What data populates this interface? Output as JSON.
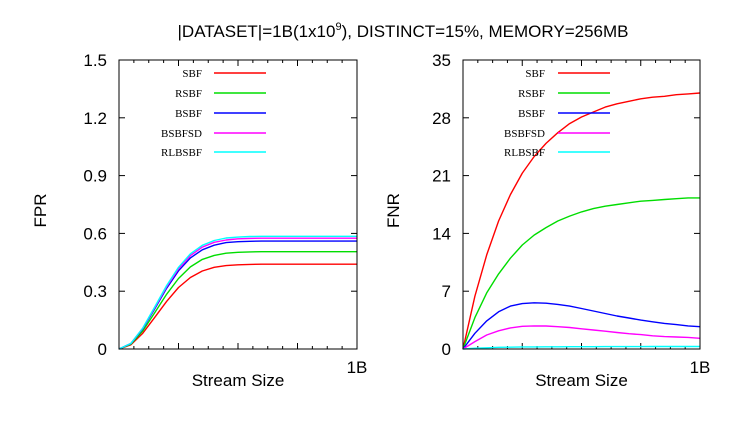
{
  "title_main": "|DATASET|=1B(1x10",
  "title_sup": "9",
  "title_rest": "), DISTINCT=15%, MEMORY=256MB",
  "chart_data": [
    {
      "type": "line",
      "ylabel": "FPR",
      "xlabel": "Stream Size",
      "x_tick_labels": [
        "1B"
      ],
      "y_tick_labels": [
        "0",
        "0.3",
        "0.6",
        "0.9",
        "1.2",
        "1.5"
      ],
      "y_ticks": [
        0,
        0.3,
        0.6,
        0.9,
        1.2,
        1.5
      ],
      "ylim": [
        0,
        1.5
      ],
      "xlim": [
        0,
        1
      ],
      "x_unit": "B",
      "legend_position": "top-left",
      "grid": false,
      "x": [
        0,
        0.05,
        0.1,
        0.15,
        0.2,
        0.25,
        0.3,
        0.35,
        0.4,
        0.45,
        0.5,
        0.55,
        0.6,
        0.65,
        0.7,
        0.75,
        0.8,
        0.85,
        0.9,
        0.95,
        1
      ],
      "series": [
        {
          "name": "SBF",
          "color": "#ff0000",
          "values": [
            0,
            0.022,
            0.082,
            0.164,
            0.247,
            0.319,
            0.371,
            0.405,
            0.424,
            0.433,
            0.437,
            0.439,
            0.44,
            0.44,
            0.44,
            0.44,
            0.44,
            0.44,
            0.44,
            0.44,
            0.44
          ]
        },
        {
          "name": "RSBF",
          "color": "#00dd00",
          "values": [
            0,
            0.025,
            0.094,
            0.188,
            0.284,
            0.366,
            0.426,
            0.465,
            0.486,
            0.497,
            0.502,
            0.504,
            0.505,
            0.505,
            0.505,
            0.505,
            0.505,
            0.505,
            0.505,
            0.505,
            0.505
          ]
        },
        {
          "name": "BSBF",
          "color": "#0000ff",
          "values": [
            0,
            0.028,
            0.105,
            0.208,
            0.315,
            0.406,
            0.473,
            0.515,
            0.539,
            0.552,
            0.557,
            0.559,
            0.56,
            0.56,
            0.56,
            0.56,
            0.56,
            0.56,
            0.56,
            0.56,
            0.56
          ]
        },
        {
          "name": "BSBFSD",
          "color": "#ff00ff",
          "values": [
            0,
            0.029,
            0.108,
            0.214,
            0.323,
            0.417,
            0.485,
            0.529,
            0.554,
            0.566,
            0.572,
            0.574,
            0.575,
            0.575,
            0.575,
            0.575,
            0.575,
            0.575,
            0.575,
            0.575,
            0.575
          ]
        },
        {
          "name": "RLBSBF",
          "color": "#00ffff",
          "values": [
            0,
            0.029,
            0.109,
            0.218,
            0.329,
            0.424,
            0.494,
            0.538,
            0.563,
            0.576,
            0.581,
            0.584,
            0.585,
            0.585,
            0.585,
            0.585,
            0.585,
            0.585,
            0.585,
            0.585,
            0.585
          ]
        }
      ]
    },
    {
      "type": "line",
      "ylabel": "FNR",
      "xlabel": "Stream Size",
      "x_tick_labels": [
        "1B"
      ],
      "y_tick_labels": [
        "0",
        "7",
        "14",
        "21",
        "28",
        "35"
      ],
      "y_ticks": [
        0,
        7,
        14,
        21,
        28,
        35
      ],
      "ylim": [
        0,
        35
      ],
      "xlim": [
        0,
        1
      ],
      "x_unit": "B",
      "legend_position": "top-left",
      "grid": false,
      "x": [
        0,
        0.05,
        0.1,
        0.15,
        0.2,
        0.25,
        0.3,
        0.35,
        0.4,
        0.45,
        0.5,
        0.55,
        0.6,
        0.65,
        0.7,
        0.75,
        0.8,
        0.85,
        0.9,
        0.95,
        1
      ],
      "series": [
        {
          "name": "SBF",
          "color": "#ff0000",
          "values": [
            0,
            6.4,
            11.4,
            15.5,
            18.7,
            21.3,
            23.3,
            24.9,
            26.2,
            27.3,
            28.1,
            28.7,
            29.3,
            29.7,
            30.0,
            30.3,
            30.5,
            30.6,
            30.8,
            30.9,
            31.0
          ]
        },
        {
          "name": "RSBF",
          "color": "#00dd00",
          "values": [
            0,
            3.8,
            6.8,
            9.1,
            11.0,
            12.6,
            13.8,
            14.7,
            15.5,
            16.1,
            16.6,
            17.0,
            17.3,
            17.5,
            17.7,
            17.9,
            18.0,
            18.1,
            18.2,
            18.3,
            18.3
          ]
        },
        {
          "name": "BSBF",
          "color": "#0000ff",
          "values": [
            0,
            1.9,
            3.4,
            4.5,
            5.2,
            5.5,
            5.6,
            5.55,
            5.4,
            5.2,
            4.9,
            4.6,
            4.3,
            4.0,
            3.75,
            3.5,
            3.3,
            3.1,
            2.95,
            2.8,
            2.7
          ]
        },
        {
          "name": "BSBFSD",
          "color": "#ff00ff",
          "values": [
            0,
            0.9,
            1.7,
            2.2,
            2.55,
            2.75,
            2.8,
            2.78,
            2.7,
            2.6,
            2.45,
            2.3,
            2.15,
            2.0,
            1.85,
            1.75,
            1.6,
            1.5,
            1.45,
            1.4,
            1.3
          ]
        },
        {
          "name": "RLBSBF",
          "color": "#00ffff",
          "values": [
            0,
            0.1,
            0.15,
            0.2,
            0.22,
            0.25,
            0.26,
            0.27,
            0.27,
            0.28,
            0.28,
            0.28,
            0.29,
            0.29,
            0.29,
            0.29,
            0.3,
            0.3,
            0.3,
            0.3,
            0.3
          ]
        }
      ]
    }
  ]
}
